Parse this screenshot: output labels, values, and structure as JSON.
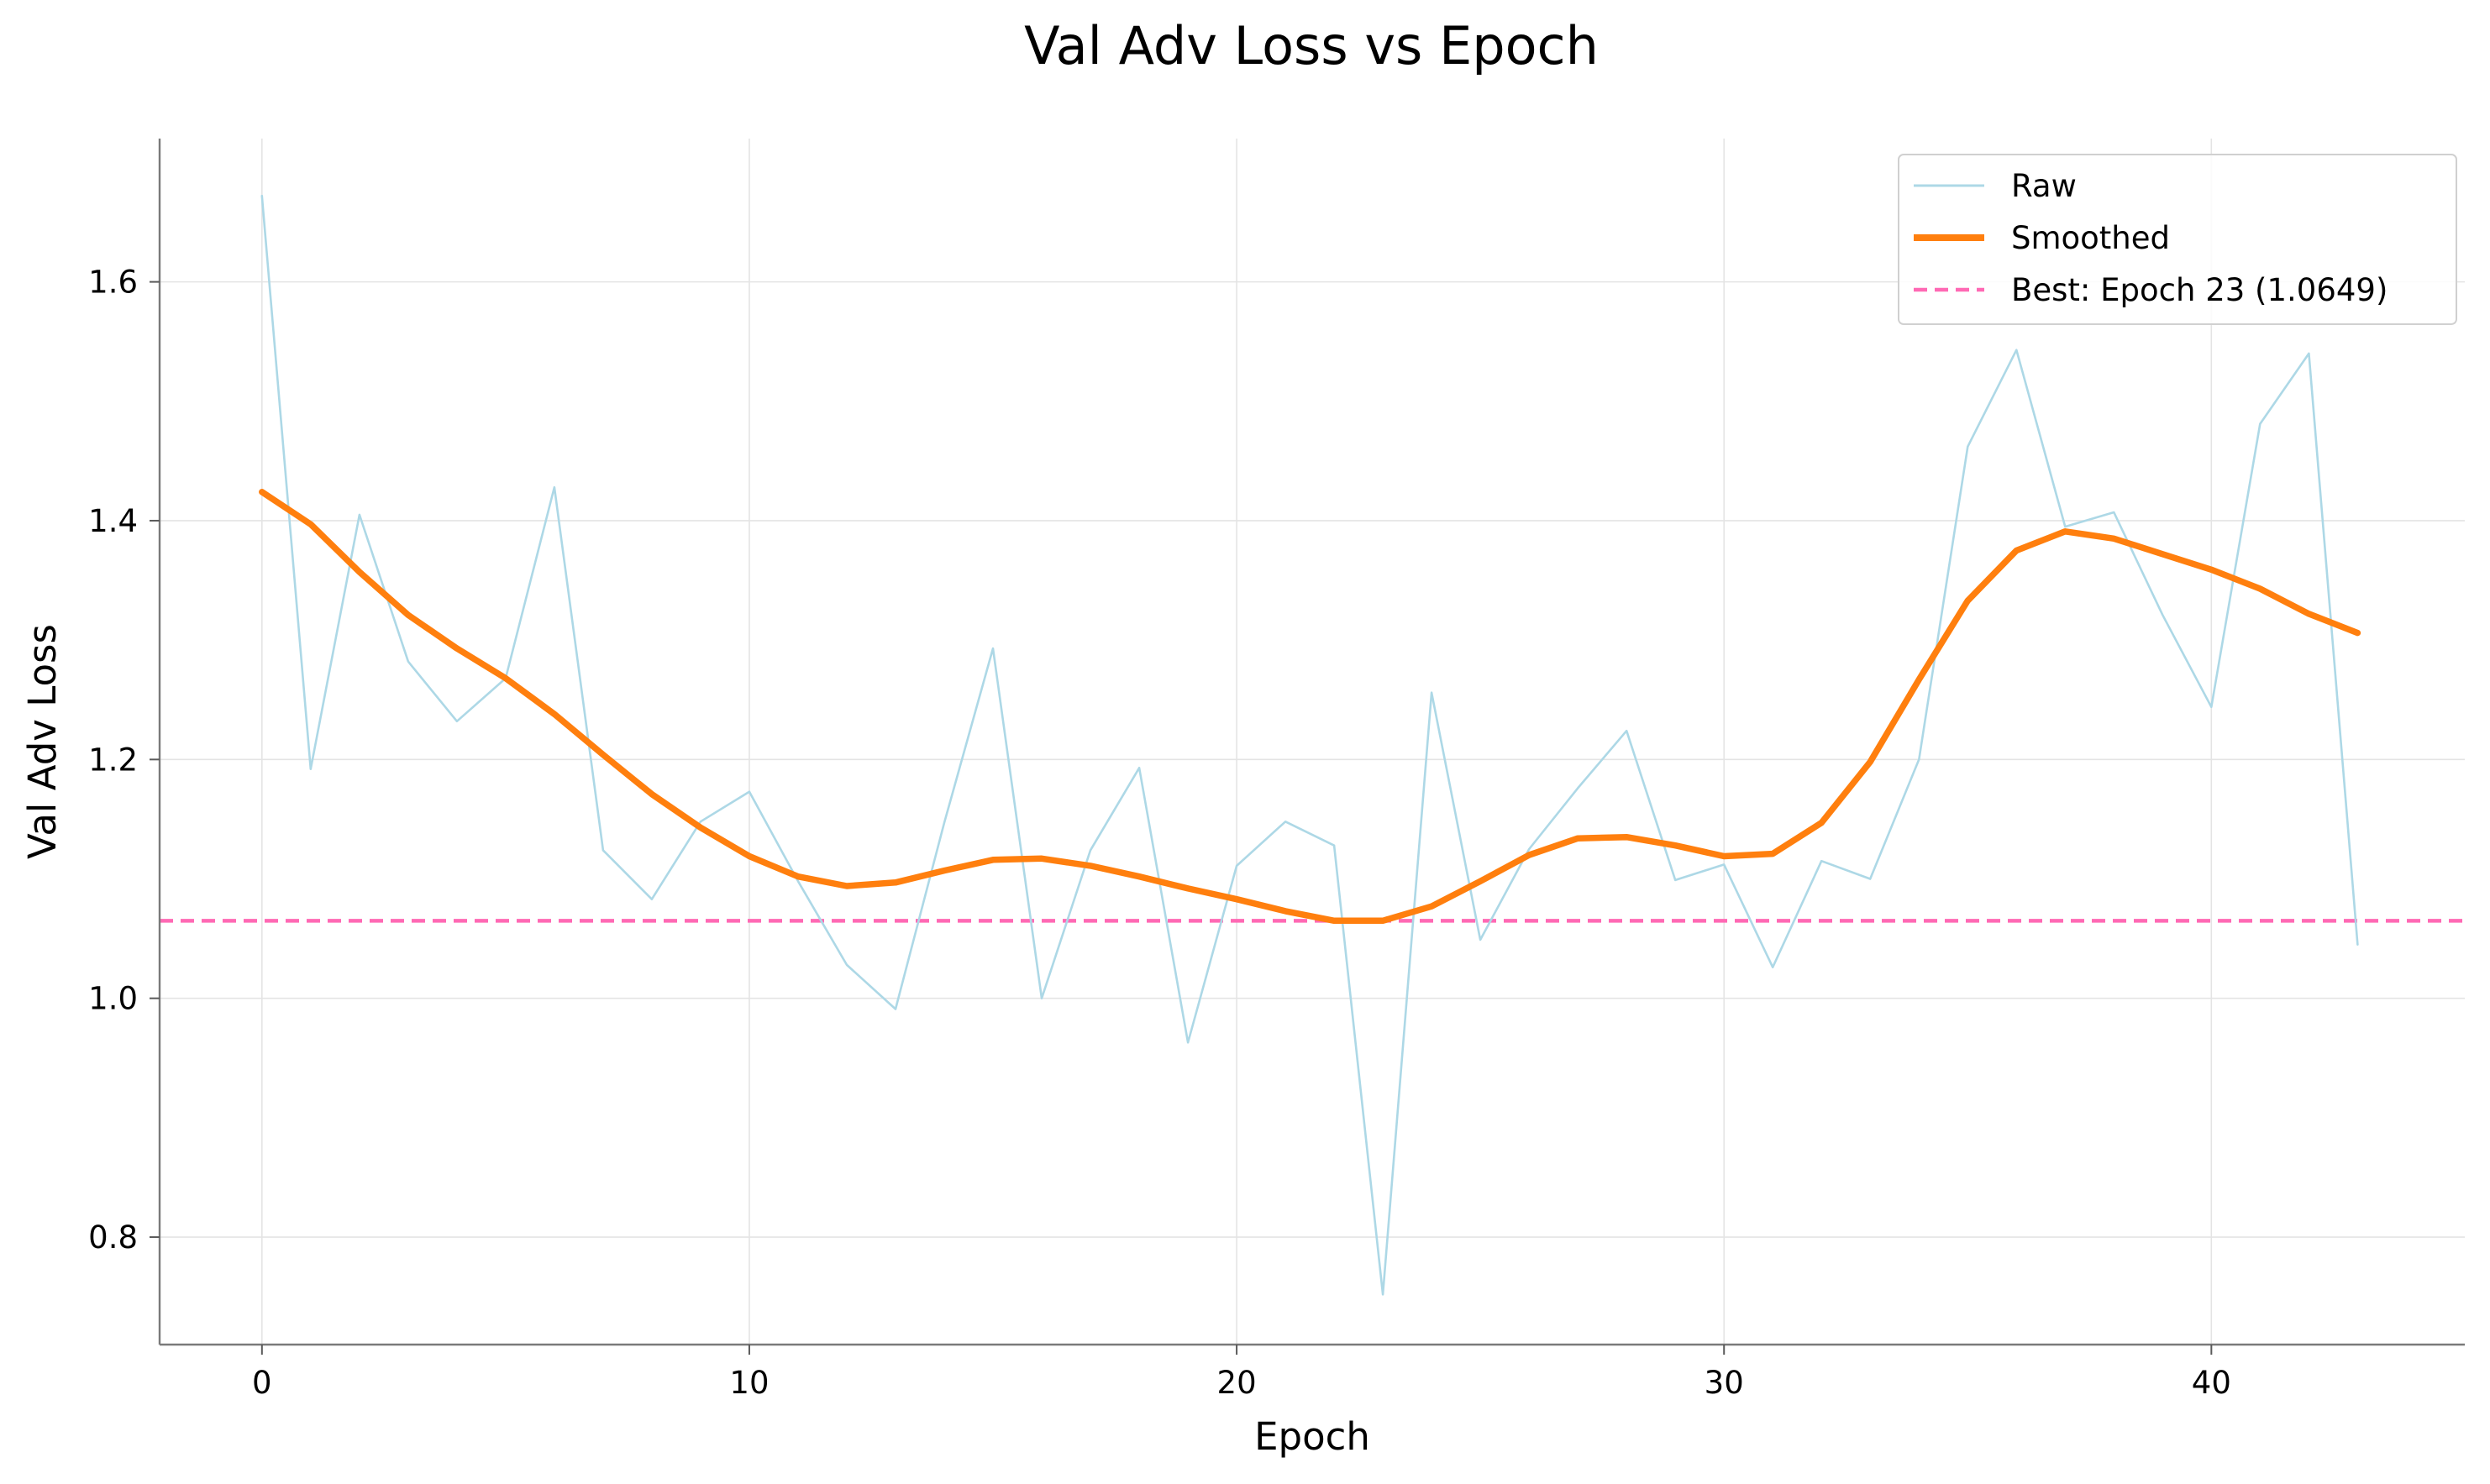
{
  "chart_data": {
    "type": "line",
    "title": "Val Adv Loss vs Epoch",
    "xlabel": "Epoch",
    "ylabel": "Val Adv Loss",
    "xlim": [
      -2.1,
      45.2
    ],
    "ylim": [
      0.71,
      1.72
    ],
    "x_ticks": [
      0,
      10,
      20,
      30,
      40
    ],
    "y_ticks": [
      0.8,
      1.0,
      1.2,
      1.4,
      1.6
    ],
    "x_tick_labels": [
      "0",
      "10",
      "20",
      "30",
      "40"
    ],
    "y_tick_labels": [
      "0.8",
      "1.0",
      "1.2",
      "1.4",
      "1.6"
    ],
    "grid": true,
    "legend_position": "top-right",
    "x": [
      0,
      1,
      2,
      3,
      4,
      5,
      6,
      7,
      8,
      9,
      10,
      11,
      12,
      13,
      14,
      15,
      16,
      17,
      18,
      19,
      20,
      21,
      22,
      23,
      24,
      25,
      26,
      27,
      28,
      29,
      30,
      31,
      32,
      33,
      34,
      35,
      36,
      37,
      38,
      39,
      40,
      41,
      42,
      43
    ],
    "series": [
      {
        "name": "Raw",
        "color": "#add8e6",
        "values": [
          1.672,
          1.192,
          1.405,
          1.282,
          1.232,
          1.268,
          1.428,
          1.124,
          1.083,
          1.148,
          1.173,
          1.098,
          1.028,
          0.991,
          1.147,
          1.293,
          1.0,
          1.124,
          1.193,
          0.963,
          1.111,
          1.148,
          1.128,
          0.752,
          1.256,
          1.049,
          1.125,
          1.176,
          1.224,
          1.099,
          1.112,
          1.026,
          1.115,
          1.1,
          1.2,
          1.462,
          1.543,
          1.395,
          1.407,
          1.321,
          1.244,
          1.481,
          1.54,
          1.045
        ]
      },
      {
        "name": "Smoothed",
        "color": "#ff7f0e",
        "values": [
          1.424,
          1.397,
          1.357,
          1.321,
          1.293,
          1.268,
          1.238,
          1.204,
          1.171,
          1.143,
          1.119,
          1.102,
          1.094,
          1.097,
          1.107,
          1.116,
          1.117,
          1.111,
          1.102,
          1.092,
          1.083,
          1.073,
          1.065,
          1.065,
          1.077,
          1.098,
          1.12,
          1.134,
          1.135,
          1.128,
          1.119,
          1.121,
          1.147,
          1.198,
          1.267,
          1.333,
          1.375,
          1.391,
          1.385,
          1.372,
          1.359,
          1.343,
          1.322,
          1.306
        ]
      }
    ],
    "reference_line": {
      "name": "Best: Epoch 23 (1.0649)",
      "y": 1.0649,
      "color": "#ff69b4",
      "style": "dashed"
    },
    "legend": [
      "Raw",
      "Smoothed",
      "Best: Epoch 23 (1.0649)"
    ]
  }
}
